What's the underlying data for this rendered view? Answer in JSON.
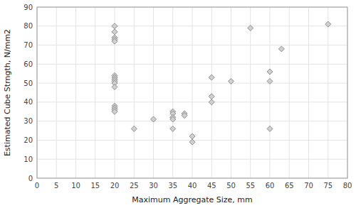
{
  "chart_data": {
    "type": "scatter",
    "x": [
      20,
      20,
      20,
      20,
      20,
      20,
      20,
      20,
      20,
      20,
      20,
      20,
      20,
      20,
      20,
      25,
      30,
      35,
      35,
      35,
      35,
      35,
      38,
      38,
      40,
      40,
      45,
      45,
      45,
      50,
      55,
      60,
      60,
      60,
      63,
      75
    ],
    "y": [
      80,
      77,
      74,
      73,
      72,
      54,
      53,
      52,
      51,
      50,
      48,
      38,
      37,
      36,
      35,
      26,
      31,
      35,
      34,
      32,
      31,
      26,
      34,
      33,
      22,
      19,
      53,
      43,
      40,
      51,
      79,
      56,
      51,
      26,
      68,
      81
    ],
    "xlabel": "Maximum Aggregate Size, mm",
    "ylabel": "Estimated Cube Strngth, N/mm2",
    "xlim": [
      0,
      80
    ],
    "ylim": [
      0,
      90
    ],
    "xticks": [
      0,
      5,
      10,
      15,
      20,
      25,
      30,
      35,
      40,
      45,
      50,
      55,
      60,
      65,
      70,
      75,
      80
    ],
    "yticks": [
      0,
      10,
      20,
      30,
      40,
      50,
      60,
      70,
      80,
      90
    ],
    "color": "#d0d0d0",
    "marker": "diamond",
    "grid": true
  }
}
